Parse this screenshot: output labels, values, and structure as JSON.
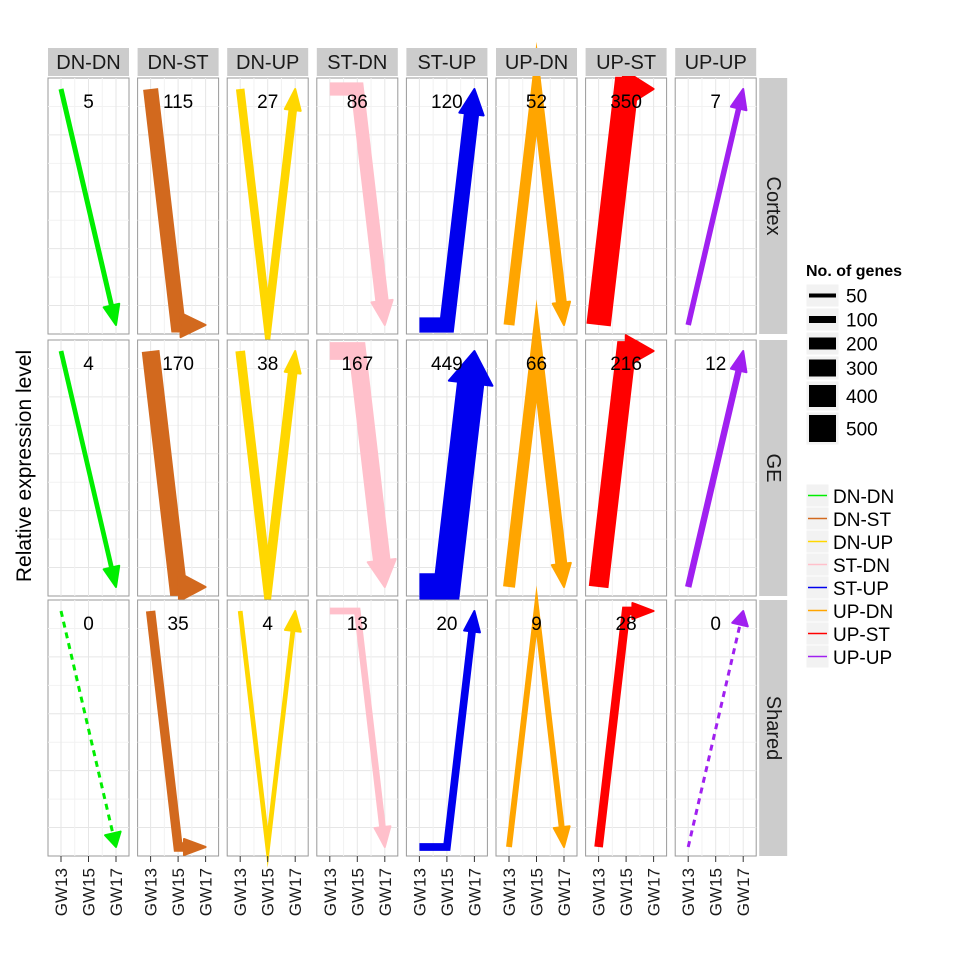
{
  "chart_data": {
    "type": "line",
    "ylabel": "Relative expression level",
    "x_categories": [
      "GW13",
      "GW15",
      "GW17"
    ],
    "patterns": [
      "DN-DN",
      "DN-ST",
      "DN-UP",
      "ST-DN",
      "ST-UP",
      "UP-DN",
      "UP-ST",
      "UP-UP"
    ],
    "regions": [
      "Cortex",
      "GE",
      "Shared"
    ],
    "levels": {
      "DN-DN": [
        2,
        1,
        0
      ],
      "DN-ST": [
        2,
        0,
        0
      ],
      "DN-UP": [
        2,
        0,
        2
      ],
      "ST-DN": [
        2,
        2,
        0
      ],
      "ST-UP": [
        0,
        0,
        2
      ],
      "UP-DN": [
        0,
        2,
        0
      ],
      "UP-ST": [
        0,
        2,
        2
      ],
      "UP-UP": [
        0,
        1,
        2
      ]
    },
    "counts": {
      "Cortex": [
        5,
        115,
        27,
        86,
        120,
        52,
        350,
        7
      ],
      "GE": [
        4,
        170,
        38,
        167,
        449,
        66,
        216,
        12
      ],
      "Shared": [
        0,
        35,
        4,
        13,
        20,
        9,
        28,
        0
      ]
    },
    "colors": {
      "DN-DN": "#00EE00",
      "DN-ST": "#D2691E",
      "DN-UP": "#FFD700",
      "ST-DN": "#FFC0CB",
      "ST-UP": "#0000EE",
      "UP-DN": "#FFA500",
      "UP-ST": "#FF0000",
      "UP-UP": "#A020F0"
    },
    "size_legend": {
      "title": "No. of genes",
      "values": [
        "50",
        "100",
        "200",
        "300",
        "400",
        "500"
      ]
    },
    "color_legend": [
      "DN-DN",
      "DN-ST",
      "DN-UP",
      "ST-DN",
      "ST-UP",
      "UP-DN",
      "UP-ST",
      "UP-UP"
    ],
    "legend_position": "right",
    "grid": true
  }
}
